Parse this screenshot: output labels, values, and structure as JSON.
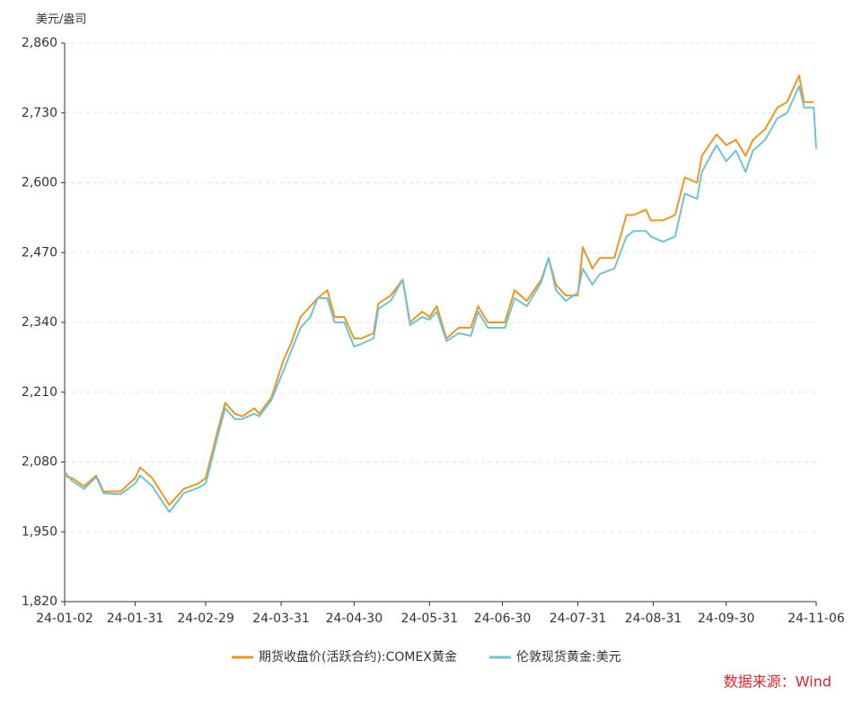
{
  "chart_data": {
    "type": "line",
    "y_unit": "美元/盎司",
    "source": "数据来源：Wind",
    "x": [
      "24-01-02",
      "24-01-05",
      "24-01-10",
      "24-01-15",
      "24-01-18",
      "24-01-25",
      "24-01-31",
      "24-02-02",
      "24-02-07",
      "24-02-14",
      "24-02-20",
      "24-02-26",
      "24-02-29",
      "24-03-05",
      "24-03-08",
      "24-03-12",
      "24-03-15",
      "24-03-20",
      "24-03-22",
      "24-03-27",
      "24-04-01",
      "24-04-04",
      "24-04-08",
      "24-04-12",
      "24-04-15",
      "24-04-19",
      "24-04-22",
      "24-04-26",
      "24-04-30",
      "24-05-03",
      "24-05-08",
      "24-05-10",
      "24-05-15",
      "24-05-20",
      "24-05-23",
      "24-05-28",
      "24-05-31",
      "24-06-03",
      "24-06-07",
      "24-06-12",
      "24-06-17",
      "24-06-20",
      "24-06-24",
      "24-06-28",
      "24-07-01",
      "24-07-05",
      "24-07-10",
      "24-07-16",
      "24-07-19",
      "24-07-22",
      "24-07-26",
      "24-07-31",
      "24-08-02",
      "24-08-06",
      "24-08-09",
      "24-08-15",
      "24-08-20",
      "24-08-23",
      "24-08-28",
      "24-08-30",
      "24-09-04",
      "24-09-09",
      "24-09-13",
      "24-09-18",
      "24-09-20",
      "24-09-26",
      "24-09-30",
      "24-10-04",
      "24-10-08",
      "24-10-11",
      "24-10-16",
      "24-10-21",
      "24-10-25",
      "24-10-30",
      "24-11-01",
      "24-11-05",
      "24-11-06"
    ],
    "series": [
      {
        "name": "期货收盘价(活跃合约):COMEX黄金",
        "color": "#f0961e",
        "values": [
          2054,
          2050,
          2035,
          2055,
          2025,
          2025,
          2050,
          2070,
          2050,
          2000,
          2030,
          2040,
          2050,
          2140,
          2190,
          2170,
          2165,
          2180,
          2170,
          2200,
          2270,
          2300,
          2350,
          2370,
          2385,
          2400,
          2350,
          2350,
          2310,
          2310,
          2320,
          2375,
          2390,
          2420,
          2340,
          2360,
          2350,
          2370,
          2310,
          2330,
          2330,
          2370,
          2340,
          2340,
          2340,
          2400,
          2380,
          2420,
          2460,
          2410,
          2390,
          2390,
          2480,
          2440,
          2460,
          2460,
          2540,
          2540,
          2550,
          2530,
          2530,
          2540,
          2610,
          2600,
          2650,
          2690,
          2670,
          2680,
          2650,
          2680,
          2700,
          2740,
          2750,
          2800,
          2750,
          2750,
          null
        ]
      },
      {
        "name": "伦敦现货黄金:美元",
        "color": "#6ec4d4",
        "values": [
          2062,
          2045,
          2030,
          2052,
          2022,
          2020,
          2040,
          2055,
          2035,
          1987,
          2022,
          2032,
          2040,
          2130,
          2180,
          2160,
          2160,
          2170,
          2165,
          2195,
          2250,
          2285,
          2330,
          2350,
          2385,
          2385,
          2340,
          2340,
          2295,
          2300,
          2310,
          2365,
          2380,
          2420,
          2335,
          2350,
          2345,
          2360,
          2305,
          2320,
          2315,
          2360,
          2330,
          2330,
          2330,
          2385,
          2370,
          2415,
          2460,
          2400,
          2380,
          2395,
          2440,
          2410,
          2430,
          2440,
          2500,
          2510,
          2510,
          2500,
          2490,
          2500,
          2580,
          2570,
          2620,
          2670,
          2640,
          2660,
          2620,
          2660,
          2680,
          2720,
          2730,
          2780,
          2740,
          2740,
          2663
        ]
      }
    ],
    "ylim": [
      1820,
      2860
    ],
    "yticks": [
      {
        "value": 1820,
        "label": "1,820"
      },
      {
        "value": 1950,
        "label": "1,950"
      },
      {
        "value": 2080,
        "label": "2,080"
      },
      {
        "value": 2210,
        "label": "2,210"
      },
      {
        "value": 2340,
        "label": "2,340"
      },
      {
        "value": 2470,
        "label": "2,470"
      },
      {
        "value": 2600,
        "label": "2,600"
      },
      {
        "value": 2730,
        "label": "2,730"
      },
      {
        "value": 2860,
        "label": "2,860"
      }
    ],
    "xlim": [
      "24-01-02",
      "24-11-06"
    ],
    "xticks": [
      "24-01-02",
      "24-01-31",
      "24-02-29",
      "24-03-31",
      "24-04-30",
      "24-05-31",
      "24-06-30",
      "24-07-31",
      "24-08-31",
      "24-09-30",
      "24-11-06"
    ],
    "grid": true,
    "legend": "bottom"
  }
}
